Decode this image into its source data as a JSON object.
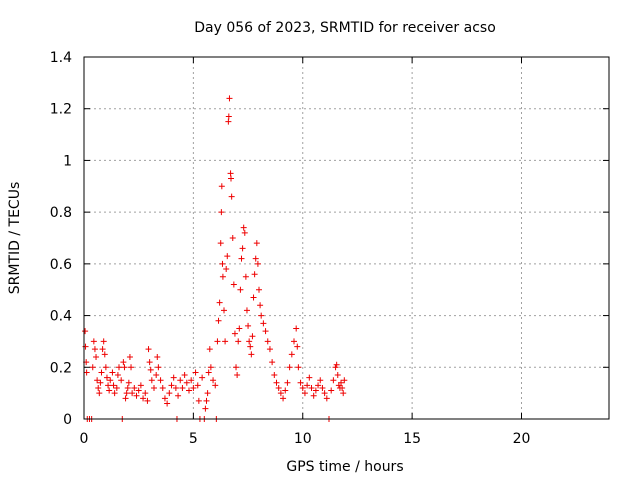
{
  "chart_data": {
    "type": "scatter",
    "title": "Day 056 of 2023, SRMTID for receiver acso",
    "xlabel": "GPS time / hours",
    "ylabel": "SRMTID / TECUs",
    "xlim": [
      0,
      24
    ],
    "ylim": [
      0,
      1.4
    ],
    "xticks": [
      0,
      5,
      10,
      15,
      20
    ],
    "xtick_labels": [
      "0",
      "5",
      "10",
      "15",
      "20"
    ],
    "yticks": [
      0,
      0.2,
      0.4,
      0.6,
      0.8,
      1.0,
      1.2,
      1.4
    ],
    "ytick_labels": [
      "0",
      "0.2",
      "0.4",
      "0.6",
      "0.8",
      "1",
      "1.2",
      "1.4"
    ],
    "grid": true,
    "marker": "plus",
    "series": [
      {
        "name": "SRMTID",
        "color": "#ee0000",
        "points": [
          [
            0.05,
            0.34
          ],
          [
            0.07,
            0.28
          ],
          [
            0.1,
            0.22
          ],
          [
            0.12,
            0.18
          ],
          [
            0.15,
            0.0
          ],
          [
            0.25,
            0.0
          ],
          [
            0.35,
            0.0
          ],
          [
            0.4,
            0.2
          ],
          [
            0.45,
            0.3
          ],
          [
            0.5,
            0.27
          ],
          [
            0.55,
            0.24
          ],
          [
            0.6,
            0.15
          ],
          [
            0.65,
            0.12
          ],
          [
            0.7,
            0.1
          ],
          [
            0.75,
            0.14
          ],
          [
            0.8,
            0.18
          ],
          [
            0.85,
            0.27
          ],
          [
            0.9,
            0.3
          ],
          [
            0.95,
            0.25
          ],
          [
            1.0,
            0.2
          ],
          [
            1.05,
            0.16
          ],
          [
            1.1,
            0.13
          ],
          [
            1.15,
            0.11
          ],
          [
            1.2,
            0.15
          ],
          [
            1.3,
            0.18
          ],
          [
            1.35,
            0.13
          ],
          [
            1.4,
            0.1
          ],
          [
            1.5,
            0.12
          ],
          [
            1.55,
            0.17
          ],
          [
            1.6,
            0.2
          ],
          [
            1.7,
            0.15
          ],
          [
            1.75,
            0.0
          ],
          [
            1.8,
            0.22
          ],
          [
            1.85,
            0.2
          ],
          [
            1.9,
            0.08
          ],
          [
            1.95,
            0.1
          ],
          [
            2.0,
            0.12
          ],
          [
            2.05,
            0.14
          ],
          [
            2.1,
            0.24
          ],
          [
            2.15,
            0.2
          ],
          [
            2.2,
            0.1
          ],
          [
            2.3,
            0.12
          ],
          [
            2.4,
            0.09
          ],
          [
            2.5,
            0.11
          ],
          [
            2.6,
            0.13
          ],
          [
            2.7,
            0.08
          ],
          [
            2.8,
            0.1
          ],
          [
            2.9,
            0.07
          ],
          [
            2.95,
            0.27
          ],
          [
            3.0,
            0.22
          ],
          [
            3.05,
            0.19
          ],
          [
            3.1,
            0.15
          ],
          [
            3.2,
            0.12
          ],
          [
            3.3,
            0.17
          ],
          [
            3.35,
            0.24
          ],
          [
            3.4,
            0.2
          ],
          [
            3.5,
            0.15
          ],
          [
            3.6,
            0.12
          ],
          [
            3.7,
            0.08
          ],
          [
            3.8,
            0.06
          ],
          [
            3.9,
            0.1
          ],
          [
            4.0,
            0.13
          ],
          [
            4.1,
            0.16
          ],
          [
            4.2,
            0.12
          ],
          [
            4.25,
            0.0
          ],
          [
            4.3,
            0.09
          ],
          [
            4.4,
            0.15
          ],
          [
            4.5,
            0.12
          ],
          [
            4.6,
            0.17
          ],
          [
            4.7,
            0.14
          ],
          [
            4.8,
            0.11
          ],
          [
            4.9,
            0.15
          ],
          [
            5.0,
            0.12
          ],
          [
            5.1,
            0.18
          ],
          [
            5.2,
            0.13
          ],
          [
            5.25,
            0.07
          ],
          [
            5.3,
            0.0
          ],
          [
            5.4,
            0.16
          ],
          [
            5.5,
            0.0
          ],
          [
            5.55,
            0.04
          ],
          [
            5.6,
            0.07
          ],
          [
            5.65,
            0.1
          ],
          [
            5.7,
            0.18
          ],
          [
            5.75,
            0.27
          ],
          [
            5.8,
            0.2
          ],
          [
            5.9,
            0.15
          ],
          [
            6.0,
            0.13
          ],
          [
            6.05,
            0.0
          ],
          [
            6.1,
            0.3
          ],
          [
            6.15,
            0.38
          ],
          [
            6.2,
            0.45
          ],
          [
            6.25,
            0.68
          ],
          [
            6.28,
            0.8
          ],
          [
            6.3,
            0.9
          ],
          [
            6.33,
            0.6
          ],
          [
            6.35,
            0.55
          ],
          [
            6.4,
            0.42
          ],
          [
            6.45,
            0.3
          ],
          [
            6.5,
            0.58
          ],
          [
            6.55,
            0.63
          ],
          [
            6.6,
            1.15
          ],
          [
            6.62,
            1.17
          ],
          [
            6.65,
            1.24
          ],
          [
            6.7,
            0.95
          ],
          [
            6.72,
            0.93
          ],
          [
            6.75,
            0.86
          ],
          [
            6.8,
            0.7
          ],
          [
            6.85,
            0.52
          ],
          [
            6.9,
            0.33
          ],
          [
            6.95,
            0.2
          ],
          [
            7.0,
            0.17
          ],
          [
            7.05,
            0.3
          ],
          [
            7.1,
            0.35
          ],
          [
            7.15,
            0.5
          ],
          [
            7.2,
            0.62
          ],
          [
            7.25,
            0.66
          ],
          [
            7.3,
            0.74
          ],
          [
            7.35,
            0.72
          ],
          [
            7.4,
            0.55
          ],
          [
            7.45,
            0.42
          ],
          [
            7.5,
            0.36
          ],
          [
            7.55,
            0.3
          ],
          [
            7.6,
            0.28
          ],
          [
            7.65,
            0.25
          ],
          [
            7.7,
            0.32
          ],
          [
            7.75,
            0.47
          ],
          [
            7.8,
            0.56
          ],
          [
            7.85,
            0.62
          ],
          [
            7.9,
            0.68
          ],
          [
            7.95,
            0.6
          ],
          [
            8.0,
            0.5
          ],
          [
            8.05,
            0.44
          ],
          [
            8.1,
            0.4
          ],
          [
            8.2,
            0.37
          ],
          [
            8.3,
            0.34
          ],
          [
            8.4,
            0.3
          ],
          [
            8.5,
            0.27
          ],
          [
            8.6,
            0.22
          ],
          [
            8.7,
            0.17
          ],
          [
            8.8,
            0.14
          ],
          [
            8.9,
            0.12
          ],
          [
            9.0,
            0.1
          ],
          [
            9.1,
            0.08
          ],
          [
            9.2,
            0.11
          ],
          [
            9.3,
            0.14
          ],
          [
            9.4,
            0.2
          ],
          [
            9.5,
            0.25
          ],
          [
            9.6,
            0.3
          ],
          [
            9.7,
            0.35
          ],
          [
            9.75,
            0.28
          ],
          [
            9.8,
            0.2
          ],
          [
            9.9,
            0.14
          ],
          [
            10.0,
            0.12
          ],
          [
            10.1,
            0.1
          ],
          [
            10.2,
            0.13
          ],
          [
            10.3,
            0.16
          ],
          [
            10.4,
            0.12
          ],
          [
            10.5,
            0.09
          ],
          [
            10.6,
            0.11
          ],
          [
            10.7,
            0.13
          ],
          [
            10.8,
            0.15
          ],
          [
            10.9,
            0.12
          ],
          [
            11.0,
            0.1
          ],
          [
            11.1,
            0.08
          ],
          [
            11.2,
            0.0
          ],
          [
            11.3,
            0.11
          ],
          [
            11.4,
            0.15
          ],
          [
            11.5,
            0.2
          ],
          [
            11.55,
            0.21
          ],
          [
            11.6,
            0.17
          ],
          [
            11.65,
            0.13
          ],
          [
            11.7,
            0.12
          ],
          [
            11.75,
            0.14
          ],
          [
            11.8,
            0.12
          ],
          [
            11.85,
            0.1
          ],
          [
            11.9,
            0.15
          ]
        ]
      }
    ]
  }
}
